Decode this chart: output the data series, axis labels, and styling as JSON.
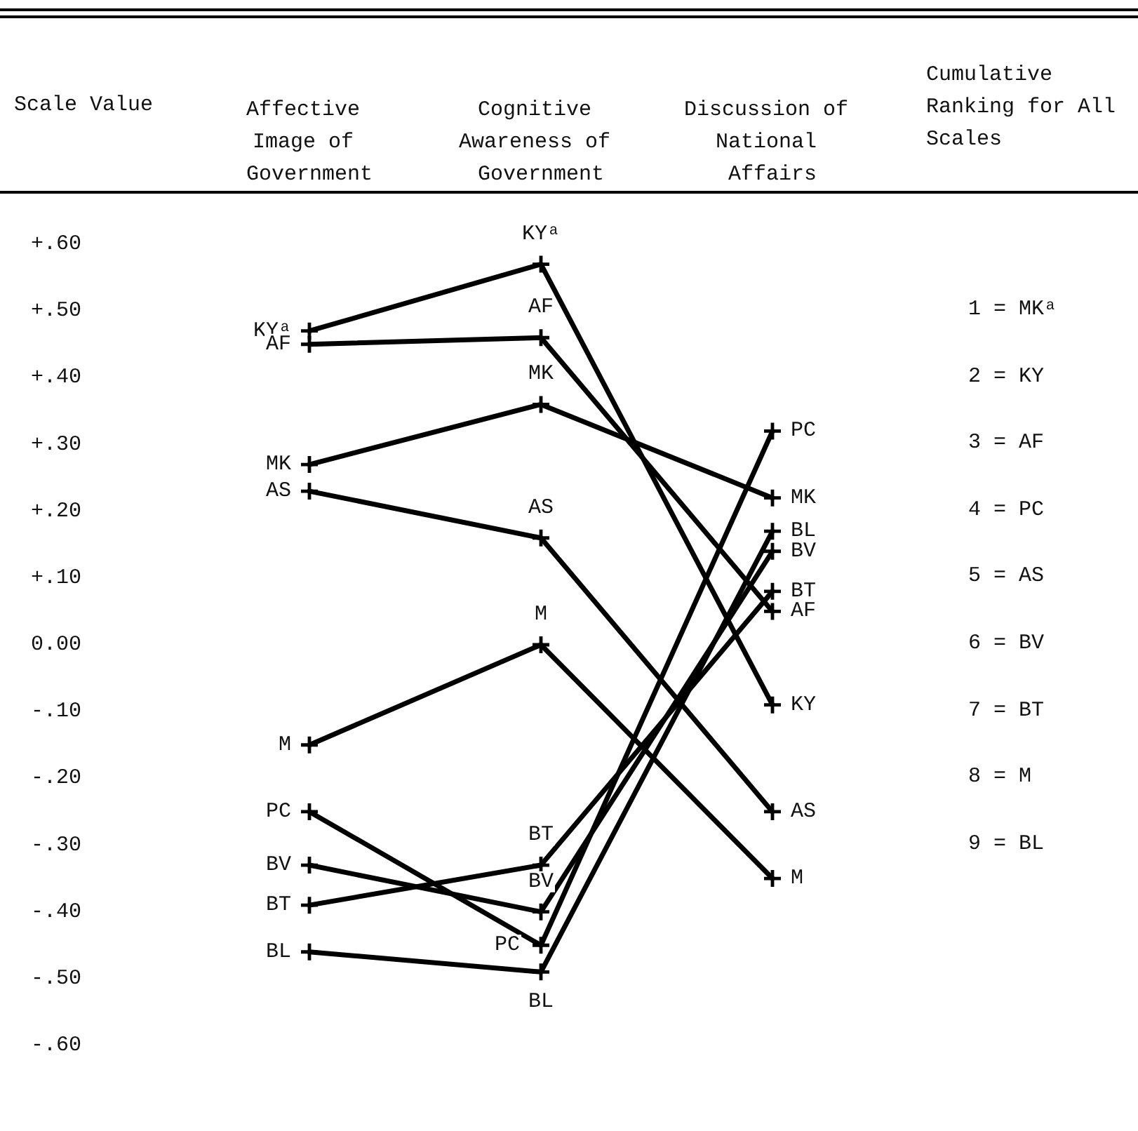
{
  "chart_data": {
    "type": "line",
    "ylabel": "Scale Value",
    "categories": [
      "Affective Image of Government",
      "Cognitive Awareness of Government",
      "Discussion of National Affairs"
    ],
    "ylim": [
      -0.6,
      0.6
    ],
    "yticks": [
      {
        "value": 0.6,
        "label": "+.60"
      },
      {
        "value": 0.5,
        "label": "+.50"
      },
      {
        "value": 0.4,
        "label": "+.40"
      },
      {
        "value": 0.3,
        "label": "+.30"
      },
      {
        "value": 0.2,
        "label": "+.20"
      },
      {
        "value": 0.1,
        "label": "+.10"
      },
      {
        "value": 0,
        "label": "0.00"
      },
      {
        "value": -0.1,
        "label": "-.10"
      },
      {
        "value": -0.2,
        "label": "-.20"
      },
      {
        "value": -0.3,
        "label": "-.30"
      },
      {
        "value": -0.4,
        "label": "-.40"
      },
      {
        "value": -0.5,
        "label": "-.50"
      },
      {
        "value": -0.6,
        "label": "-.60"
      }
    ],
    "marker": "cross",
    "series": [
      {
        "color": "#000000",
        "values": [
          0.47,
          0.57,
          -0.09
        ],
        "value_labels": [
          "KYᵃ",
          "KYᵃ",
          "KY"
        ]
      },
      {
        "color": "#000000",
        "values": [
          0.45,
          0.46,
          0.05
        ],
        "value_labels": [
          "AF",
          "AF",
          "AF"
        ]
      },
      {
        "color": "#000000",
        "values": [
          0.27,
          0.36,
          0.22
        ],
        "value_labels": [
          "MK",
          "MK",
          "MK"
        ]
      },
      {
        "color": "#000000",
        "values": [
          0.23,
          0.16,
          -0.25
        ],
        "value_labels": [
          "AS",
          "AS",
          "AS"
        ]
      },
      {
        "color": "#000000",
        "values": [
          -0.15,
          0.0,
          -0.35
        ],
        "value_labels": [
          "M",
          "M",
          "M"
        ]
      },
      {
        "color": "#000000",
        "values": [
          -0.25,
          -0.45,
          0.32
        ],
        "value_labels": [
          "PC",
          "PC",
          "PC"
        ]
      },
      {
        "color": "#000000",
        "values": [
          -0.33,
          -0.4,
          0.14
        ],
        "value_labels": [
          "BV",
          "BV",
          "BV"
        ]
      },
      {
        "color": "#000000",
        "values": [
          -0.39,
          -0.33,
          0.08
        ],
        "value_labels": [
          "BT",
          "BT",
          "BT"
        ]
      },
      {
        "color": "#000000",
        "values": [
          -0.46,
          -0.49,
          0.17
        ],
        "value_labels": [
          "BL",
          "BL",
          "BL"
        ]
      }
    ],
    "annotations": [
      "Cumulative Ranking for All Scales",
      "1 = MKᵃ",
      "2 = KY",
      "3 = AF",
      "4 = PC",
      "5 = AS",
      "6 = BV",
      "7 = BT",
      "8 = M",
      "9 = BL"
    ]
  }
}
